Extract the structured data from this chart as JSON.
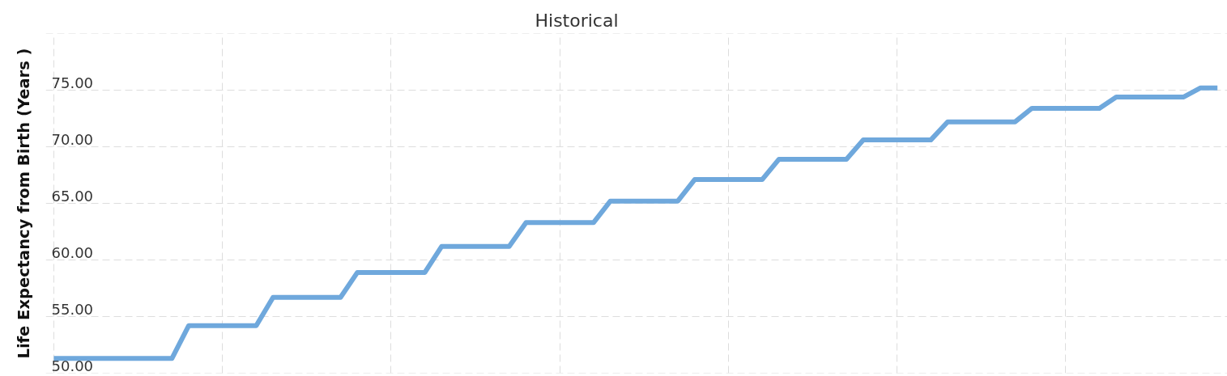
{
  "chart_data": {
    "type": "line",
    "title": "Historical",
    "ylabel": "Life Expectancy from Birth (Years )",
    "categories": [
      null,
      null,
      null,
      null,
      null,
      null,
      null,
      null,
      null,
      null,
      null,
      null,
      null,
      null,
      null,
      null,
      null,
      null,
      null,
      null,
      null,
      null,
      null,
      null,
      null,
      null,
      null,
      null,
      null,
      null,
      null,
      null,
      null,
      null,
      null,
      null,
      null,
      null,
      null,
      null,
      null,
      null,
      null,
      null,
      null,
      null,
      null,
      null,
      null,
      null,
      null,
      null,
      null,
      null,
      null,
      null,
      null,
      null,
      null,
      null,
      null,
      null,
      null,
      null,
      null,
      null,
      null,
      null,
      null,
      null
    ],
    "values": [
      51.3,
      51.3,
      51.3,
      51.3,
      51.3,
      51.3,
      51.3,
      51.3,
      54.2,
      54.2,
      54.2,
      54.2,
      54.2,
      56.7,
      56.7,
      56.7,
      56.7,
      56.7,
      58.9,
      58.9,
      58.9,
      58.9,
      58.9,
      61.2,
      61.2,
      61.2,
      61.2,
      61.2,
      63.3,
      63.3,
      63.3,
      63.3,
      63.3,
      65.2,
      65.2,
      65.2,
      65.2,
      65.2,
      67.1,
      67.1,
      67.1,
      67.1,
      67.1,
      68.9,
      68.9,
      68.9,
      68.9,
      68.9,
      70.6,
      70.6,
      70.6,
      70.6,
      70.6,
      72.2,
      72.2,
      72.2,
      72.2,
      72.2,
      73.4,
      73.4,
      73.4,
      73.4,
      73.4,
      74.4,
      74.4,
      74.4,
      74.4,
      74.4,
      75.2,
      75.2
    ],
    "color": "#6fa8dc",
    "ylim": [
      50,
      80
    ],
    "yticks": [
      {
        "value": 50,
        "label": "50.00"
      },
      {
        "value": 55,
        "label": "55.00"
      },
      {
        "value": 60,
        "label": "60.00"
      },
      {
        "value": 65,
        "label": "65.00"
      },
      {
        "value": 70,
        "label": "70.00"
      },
      {
        "value": 75,
        "label": "75.00"
      },
      {
        "value": 80,
        "label": null
      }
    ],
    "grid": true,
    "tick_labels": "y",
    "line_style": "solid"
  }
}
